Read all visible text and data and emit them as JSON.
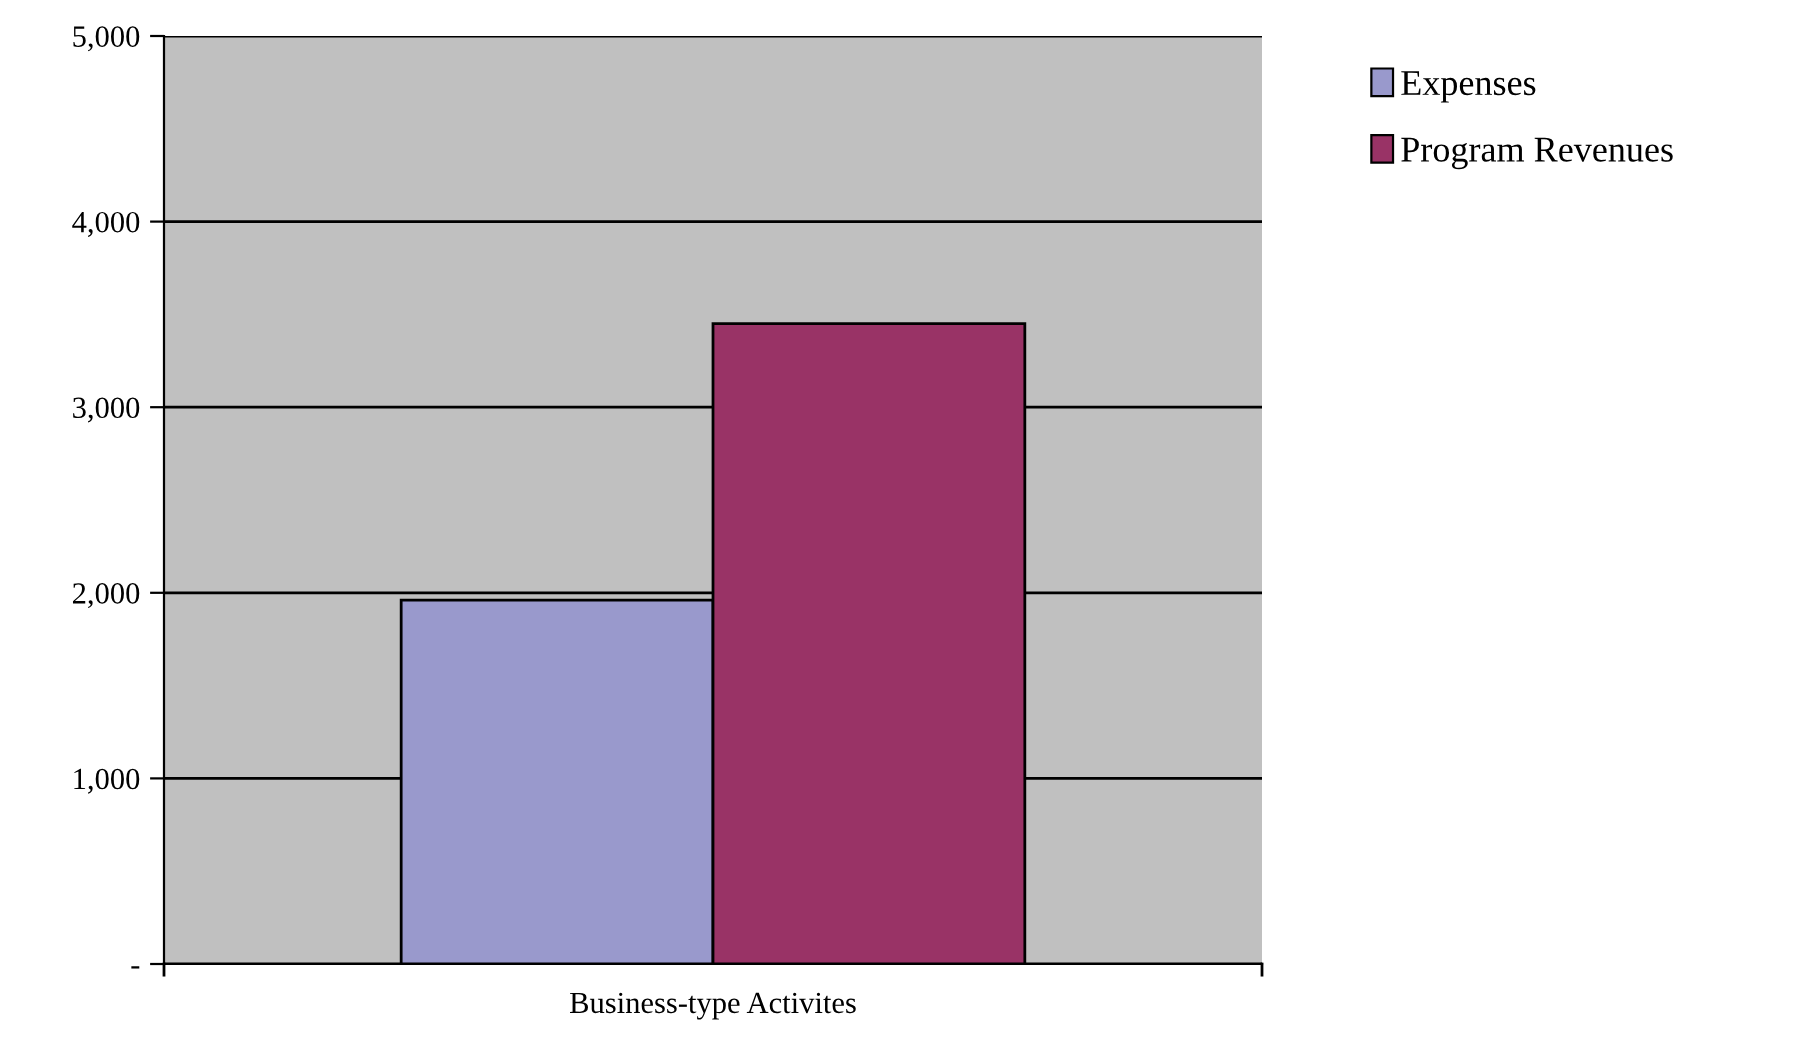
{
  "chart_data": {
    "type": "bar",
    "categories": [
      "Business-type Activites"
    ],
    "series": [
      {
        "name": "Expenses",
        "color": "#9999cc",
        "values": [
          1960
        ]
      },
      {
        "name": "Program Revenues",
        "color": "#993366",
        "values": [
          3450
        ]
      }
    ],
    "ylim": [
      0,
      5000
    ],
    "yticks": [
      {
        "value": 0,
        "label": "-"
      },
      {
        "value": 1000,
        "label": "1,000"
      },
      {
        "value": 2000,
        "label": "2,000"
      },
      {
        "value": 3000,
        "label": "3,000"
      },
      {
        "value": 4000,
        "label": "4,000"
      },
      {
        "value": 5000,
        "label": "5,000"
      }
    ],
    "grid": "y",
    "legend": "top right"
  }
}
